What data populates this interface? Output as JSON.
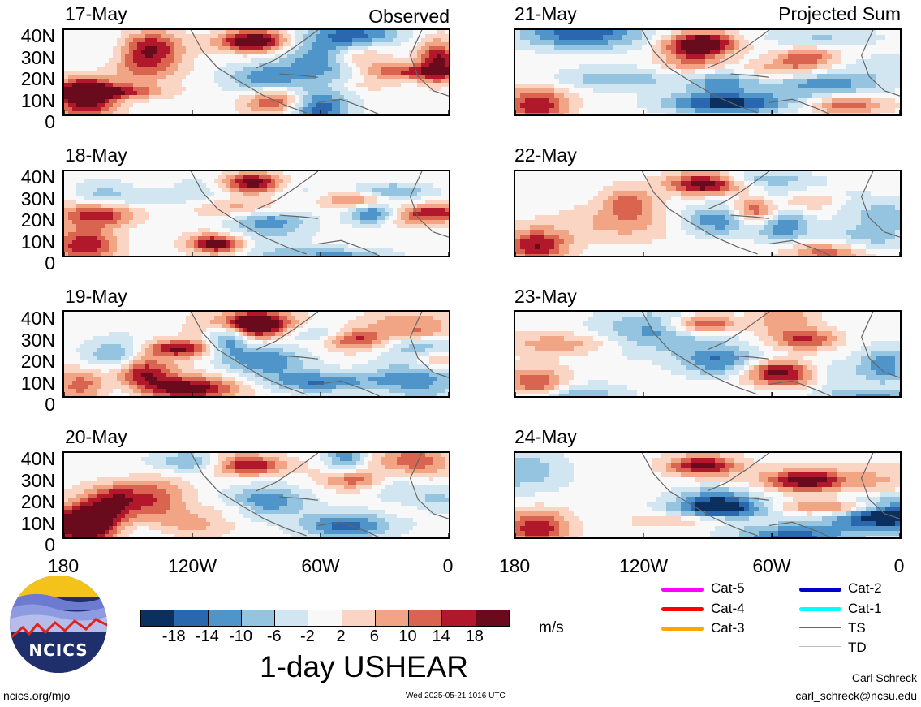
{
  "headers": {
    "left": "Observed",
    "right": "Projected Sum"
  },
  "panels_left": [
    {
      "date": "17-May"
    },
    {
      "date": "18-May"
    },
    {
      "date": "19-May"
    },
    {
      "date": "20-May"
    }
  ],
  "panels_right": [
    {
      "date": "21-May"
    },
    {
      "date": "22-May"
    },
    {
      "date": "23-May"
    },
    {
      "date": "24-May"
    }
  ],
  "y_labels": [
    "40N",
    "30N",
    "20N",
    "10N",
    "0"
  ],
  "x_labels": [
    "180",
    "120W",
    "60W",
    "0"
  ],
  "colorbar": {
    "colors": [
      "#0b2f5e",
      "#2b67ae",
      "#4f95c9",
      "#94c4df",
      "#d2e6f1",
      "#f8f8f8",
      "#fbd5c3",
      "#f2a584",
      "#d96450",
      "#b1182b",
      "#6a0a1d"
    ],
    "tick_labels": [
      "-18",
      "-14",
      "-10",
      "-6",
      "-2",
      "2",
      "6",
      "10",
      "14",
      "18"
    ],
    "units": "m/s",
    "title": "1-day USHEAR"
  },
  "storm_legend": [
    {
      "label": "Cat-5",
      "color": "#ff00ff"
    },
    {
      "label": "Cat-4",
      "color": "#ff0000"
    },
    {
      "label": "Cat-3",
      "color": "#ffa500"
    },
    {
      "label": "Cat-2",
      "color": "#0000cd"
    },
    {
      "label": "Cat-1",
      "color": "#00ffff"
    },
    {
      "label": "TS",
      "color": "#666666"
    },
    {
      "label": "TD",
      "color": "#bbbbbb"
    }
  ],
  "logo_text": "NCICS",
  "footer": {
    "url": "ncics.org/mjo",
    "timestamp": "Wed 2025-05-21 1016 UTC",
    "author": "Carl Schreck",
    "email": "carl_schreck@ncsu.edu"
  }
}
